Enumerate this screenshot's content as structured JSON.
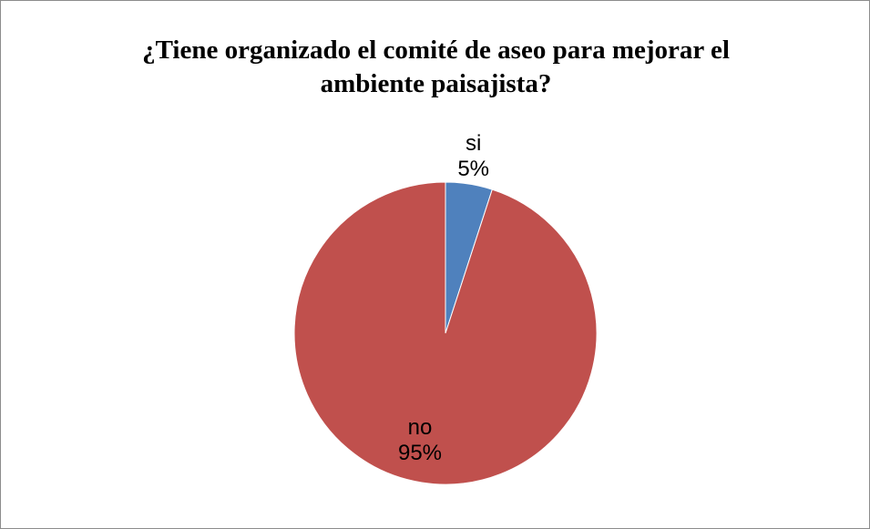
{
  "chart_data": {
    "type": "pie",
    "title_lines": [
      "¿Tiene organizado el comité de aseo para mejorar el",
      "ambiente paisajista?"
    ],
    "slices": [
      {
        "name": "si",
        "value": 5,
        "label": "5%",
        "color": "#4F81BD"
      },
      {
        "name": "no",
        "value": 95,
        "label": "95%",
        "color": "#C0504D"
      }
    ],
    "legend": "none"
  }
}
